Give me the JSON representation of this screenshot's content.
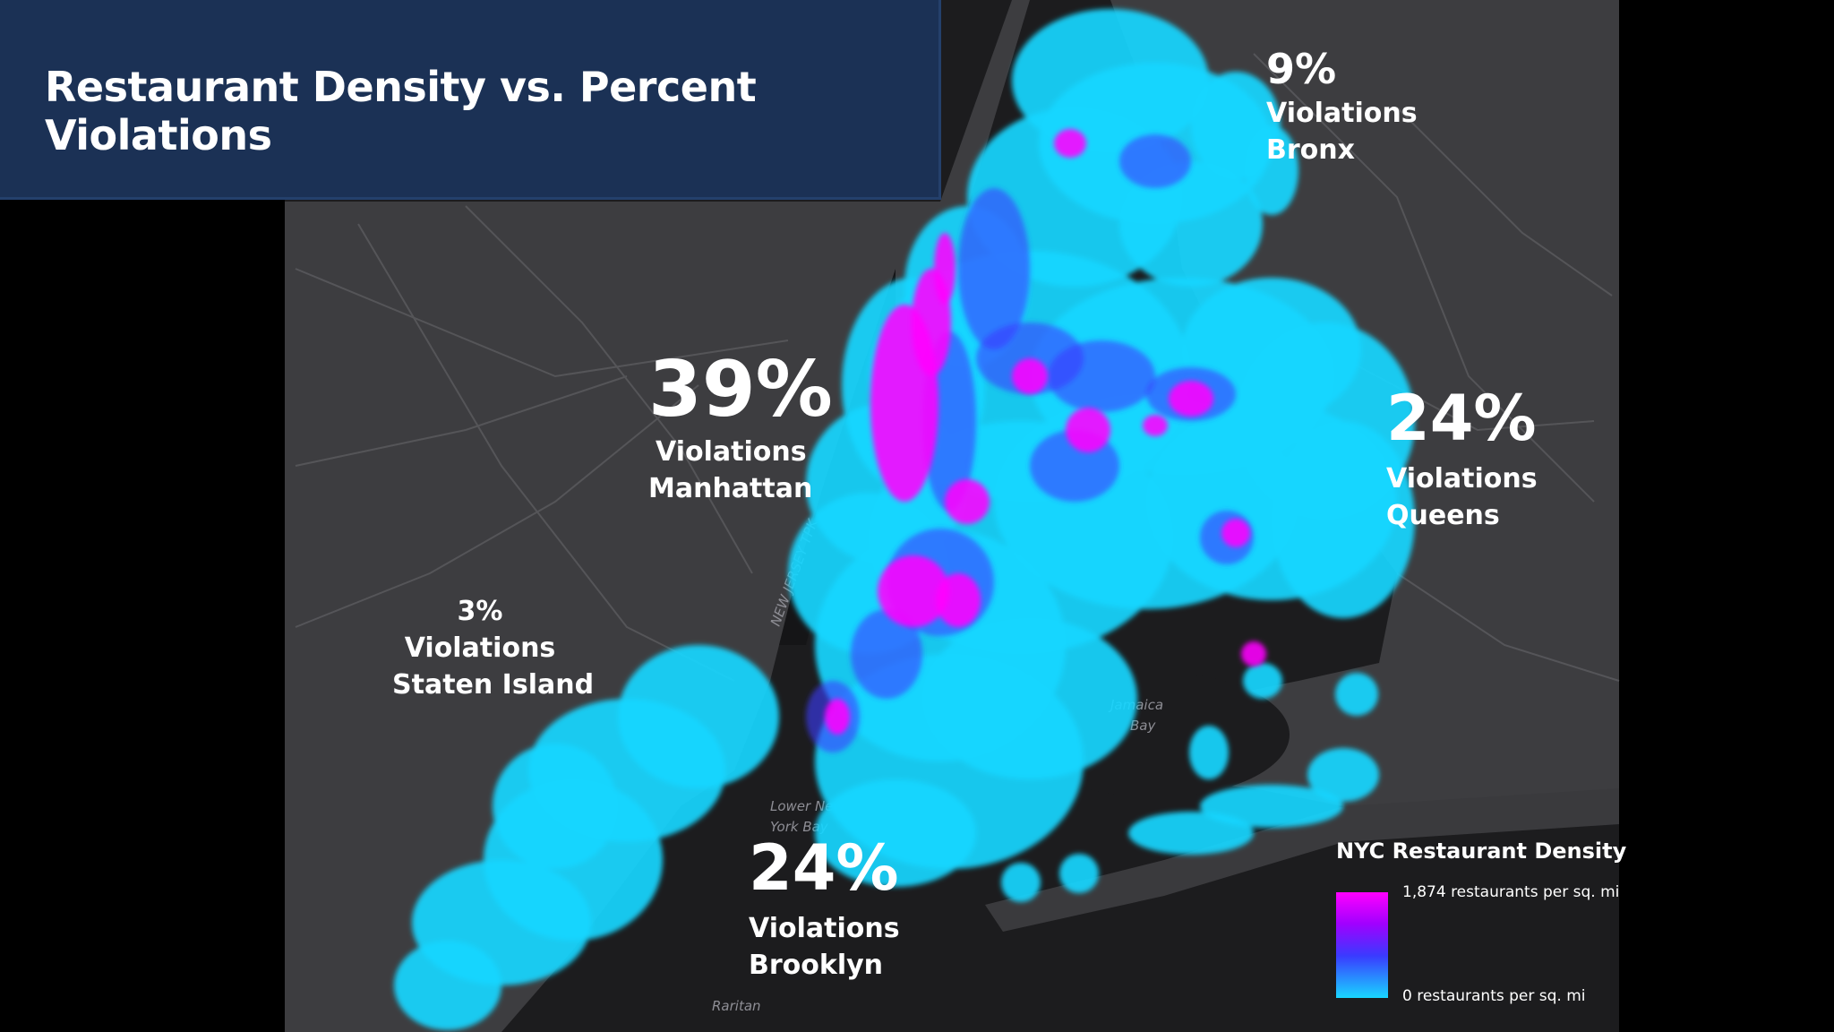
{
  "title": "Restaurant Density vs. Percent Violations",
  "boroughs": {
    "manhattan": {
      "percent": "39%",
      "label": "Violations",
      "name": "Manhattan"
    },
    "bronx": {
      "percent": "9%",
      "label": "Violations",
      "name": "Bronx"
    },
    "queens": {
      "percent": "24%",
      "label": "Violations",
      "name": "Queens"
    },
    "brooklyn": {
      "percent": "24%",
      "label": "Violations",
      "name": "Brooklyn"
    },
    "staten_island": {
      "percent": "3%",
      "label": "Violations",
      "name": "Staten Island"
    }
  },
  "legend": {
    "title": "NYC Restaurant Density",
    "max_label": "1,874 restaurants per sq. mi",
    "min_label": "0 restaurants per sq. mi",
    "colors": {
      "high": "#ff00ff",
      "mid": "#3a3aff",
      "low": "#19d6ff"
    }
  },
  "map_labels": {
    "jamaica_bay": "Jamaica Bay",
    "lower_bay": "Lower New York Bay",
    "raritan": "Raritan Bay",
    "nj_highway": "NEW JERSEY TPK"
  },
  "colors": {
    "title_bar": "#1b3155",
    "land": "#3d3d40",
    "water": "#1a1a1c",
    "heat_low": "#19d6ff",
    "heat_mid": "#3a3aff",
    "heat_high": "#ff00ff"
  }
}
